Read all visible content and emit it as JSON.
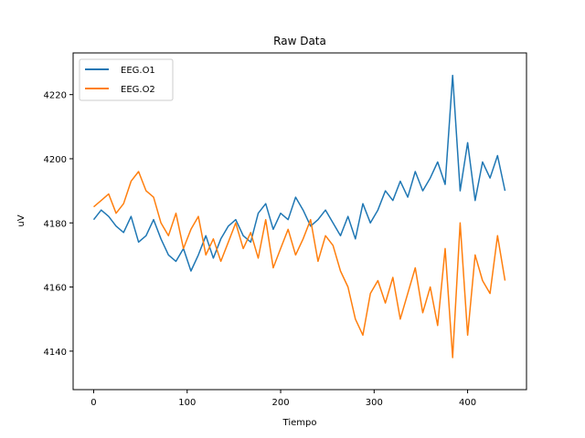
{
  "chart_data": {
    "type": "line",
    "title": "Raw Data",
    "xlabel": "Tiempo",
    "ylabel": "uV",
    "xlim": [
      -22,
      463
    ],
    "ylim": [
      4128,
      4233
    ],
    "xticks": [
      0,
      100,
      200,
      300,
      400
    ],
    "yticks": [
      4140,
      4160,
      4180,
      4200,
      4220
    ],
    "legend": "top-left",
    "grid": false,
    "series": [
      {
        "name": "EEG.O1",
        "color": "#1f77b4",
        "x": [
          0,
          8,
          16,
          24,
          32,
          40,
          48,
          56,
          64,
          72,
          80,
          88,
          96,
          104,
          112,
          120,
          128,
          136,
          144,
          152,
          160,
          168,
          176,
          184,
          192,
          200,
          208,
          216,
          224,
          232,
          240,
          248,
          256,
          264,
          272,
          280,
          288,
          296,
          304,
          312,
          320,
          328,
          336,
          344,
          352,
          360,
          368,
          376,
          384,
          392,
          400,
          408,
          416,
          424,
          432,
          440
        ],
        "y": [
          4181,
          4184,
          4182,
          4179,
          4177,
          4182,
          4174,
          4176,
          4181,
          4175,
          4170,
          4168,
          4172,
          4165,
          4170,
          4176,
          4169,
          4175,
          4179,
          4181,
          4176,
          4174,
          4183,
          4186,
          4178,
          4183,
          4181,
          4188,
          4184,
          4179,
          4181,
          4184,
          4180,
          4176,
          4182,
          4175,
          4186,
          4180,
          4184,
          4190,
          4187,
          4193,
          4188,
          4196,
          4190,
          4194,
          4199,
          4192,
          4226,
          4190,
          4205,
          4187,
          4199,
          4194,
          4201,
          4190
        ]
      },
      {
        "name": "EEG.O2",
        "color": "#ff7f0e",
        "x": [
          0,
          8,
          16,
          24,
          32,
          40,
          48,
          56,
          64,
          72,
          80,
          88,
          96,
          104,
          112,
          120,
          128,
          136,
          144,
          152,
          160,
          168,
          176,
          184,
          192,
          200,
          208,
          216,
          224,
          232,
          240,
          248,
          256,
          264,
          272,
          280,
          288,
          296,
          304,
          312,
          320,
          328,
          336,
          344,
          352,
          360,
          368,
          376,
          384,
          392,
          400,
          408,
          416,
          424,
          432,
          440
        ],
        "y": [
          4185,
          4187,
          4189,
          4183,
          4186,
          4193,
          4196,
          4190,
          4188,
          4180,
          4176,
          4183,
          4172,
          4178,
          4182,
          4170,
          4175,
          4168,
          4174,
          4180,
          4172,
          4177,
          4169,
          4181,
          4166,
          4172,
          4178,
          4170,
          4175,
          4181,
          4168,
          4176,
          4173,
          4165,
          4160,
          4150,
          4145,
          4158,
          4162,
          4155,
          4163,
          4150,
          4158,
          4166,
          4152,
          4160,
          4148,
          4172,
          4138,
          4180,
          4145,
          4170,
          4162,
          4158,
          4176,
          4162
        ]
      }
    ]
  }
}
